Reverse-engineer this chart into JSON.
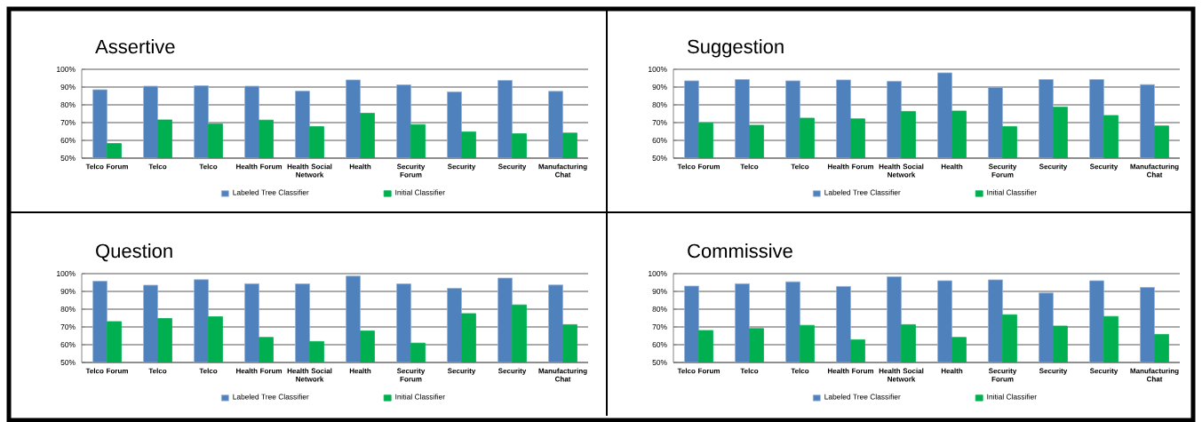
{
  "chart_data": [
    {
      "type": "bar",
      "title": "Assertive",
      "categories": [
        "Telco Forum",
        "Telco",
        "Telco",
        "Health Forum",
        "Health Social Network",
        "Health",
        "Security Forum",
        "Security",
        "Security",
        "Manufacturing Chat"
      ],
      "series": [
        {
          "name": "Labeled Tree Classifier",
          "color": "#4f81bd",
          "values": [
            88.5,
            90.5,
            90.7,
            90.5,
            87.7,
            94,
            91.2,
            87.3,
            93.7,
            87.6
          ]
        },
        {
          "name": "Initial Classifier",
          "color": "#00b050",
          "values": [
            58.2,
            71.5,
            69.3,
            71.4,
            67.7,
            75.3,
            68.9,
            64.8,
            63.7,
            64.1
          ]
        }
      ],
      "ylim": [
        50,
        100
      ],
      "yticks": [
        {
          "value": 50,
          "label": "50%"
        },
        {
          "value": 60,
          "label": "60%"
        },
        {
          "value": 70,
          "label": "70%"
        },
        {
          "value": 80,
          "label": "80%"
        },
        {
          "value": 90,
          "label": "90%"
        },
        {
          "value": 100,
          "label": "100%"
        }
      ],
      "grid": "y",
      "legend": "bottom"
    },
    {
      "type": "bar",
      "title": "Suggestion",
      "categories": [
        "Telco Forum",
        "Telco",
        "Telco",
        "Health Forum",
        "Health Social Network",
        "Health",
        "Security Forum",
        "Security",
        "Security",
        "Manufacturing Chat"
      ],
      "series": [
        {
          "name": "Labeled Tree Classifier",
          "color": "#4f81bd",
          "values": [
            93.5,
            94.2,
            93.5,
            94,
            93.2,
            98,
            89.8,
            94.2,
            94.2,
            91.4
          ]
        },
        {
          "name": "Initial Classifier",
          "color": "#00b050",
          "values": [
            69.8,
            68.5,
            72.5,
            72.1,
            76.3,
            76.5,
            67.8,
            78.7,
            74,
            68.1
          ]
        }
      ],
      "ylim": [
        50,
        100
      ],
      "yticks": [
        {
          "value": 50,
          "label": "50%"
        },
        {
          "value": 60,
          "label": "60%"
        },
        {
          "value": 70,
          "label": "70%"
        },
        {
          "value": 80,
          "label": "80%"
        },
        {
          "value": 90,
          "label": "90%"
        },
        {
          "value": 100,
          "label": "100%"
        }
      ],
      "grid": "y",
      "legend": "bottom"
    },
    {
      "type": "bar",
      "title": "Question",
      "categories": [
        "Telco Forum",
        "Telco",
        "Telco",
        "Health Forum",
        "Health Social Network",
        "Health",
        "Security Forum",
        "Security",
        "Security",
        "Manufacturing Chat"
      ],
      "series": [
        {
          "name": "Labeled Tree Classifier",
          "color": "#4f81bd",
          "values": [
            95.7,
            93.5,
            96.6,
            94.3,
            94.2,
            98.6,
            94.2,
            91.7,
            97.5,
            93.6
          ]
        },
        {
          "name": "Initial Classifier",
          "color": "#00b050",
          "values": [
            73,
            74.7,
            75.7,
            64.1,
            61.8,
            67.7,
            60.9,
            77.5,
            82.4,
            71.3
          ]
        }
      ],
      "ylim": [
        50,
        100
      ],
      "yticks": [
        {
          "value": 50,
          "label": "50%"
        },
        {
          "value": 60,
          "label": "60%"
        },
        {
          "value": 70,
          "label": "70%"
        },
        {
          "value": 80,
          "label": "80%"
        },
        {
          "value": 90,
          "label": "90%"
        },
        {
          "value": 100,
          "label": "100%"
        }
      ],
      "grid": "y",
      "legend": "bottom"
    },
    {
      "type": "bar",
      "title": "Commissive",
      "categories": [
        "Telco Forum",
        "Telco",
        "Telco",
        "Health Forum",
        "Health Social Network",
        "Health",
        "Security Forum",
        "Security",
        "Security",
        "Manufacturing Chat"
      ],
      "series": [
        {
          "name": "Labeled Tree Classifier",
          "color": "#4f81bd",
          "values": [
            93,
            94.3,
            95.4,
            92.8,
            98.3,
            96,
            96.5,
            89.1,
            96,
            92.2
          ]
        },
        {
          "name": "Initial Classifier",
          "color": "#00b050",
          "values": [
            68,
            69.1,
            70.9,
            62.8,
            71.3,
            64.1,
            76.9,
            70.5,
            75.9,
            65.8
          ]
        }
      ],
      "ylim": [
        50,
        100
      ],
      "yticks": [
        {
          "value": 50,
          "label": "50%"
        },
        {
          "value": 60,
          "label": "60%"
        },
        {
          "value": 70,
          "label": "70%"
        },
        {
          "value": 80,
          "label": "80%"
        },
        {
          "value": 90,
          "label": "90%"
        },
        {
          "value": 100,
          "label": "100%"
        }
      ],
      "grid": "y",
      "legend": "bottom"
    }
  ]
}
